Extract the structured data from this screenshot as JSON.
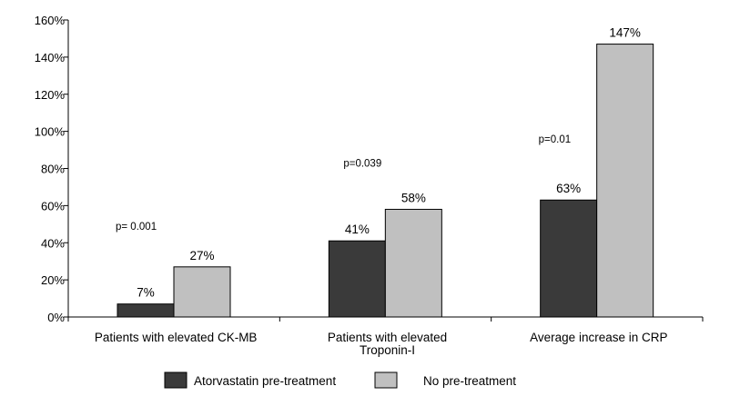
{
  "chart_data": {
    "type": "bar",
    "categories": [
      [
        "Patients with elevated CK-MB"
      ],
      [
        "Patients with elevated",
        "Troponin-I"
      ],
      [
        "Average increase in CRP"
      ]
    ],
    "series": [
      {
        "name": "Atorvastatin pre-treatment",
        "values": [
          7,
          41,
          63
        ],
        "labels": [
          "7%",
          "41%",
          "63%"
        ],
        "color": "#3a3a3a"
      },
      {
        "name": "No pre-treatment",
        "values": [
          27,
          58,
          147
        ],
        "labels": [
          "27%",
          "58%",
          "147%"
        ],
        "color": "#c0c0c0"
      }
    ],
    "annotations": [
      "p= 0.001",
      "p=0.039",
      "p=0.01"
    ],
    "ylim": [
      0,
      160
    ],
    "yticks": [
      0,
      20,
      40,
      60,
      80,
      100,
      120,
      140,
      160
    ],
    "ytick_labels": [
      "0%",
      "20%",
      "40%",
      "60%",
      "80%",
      "100%",
      "120%",
      "140%",
      "160%"
    ],
    "grid": false,
    "legend_position": "bottom"
  }
}
